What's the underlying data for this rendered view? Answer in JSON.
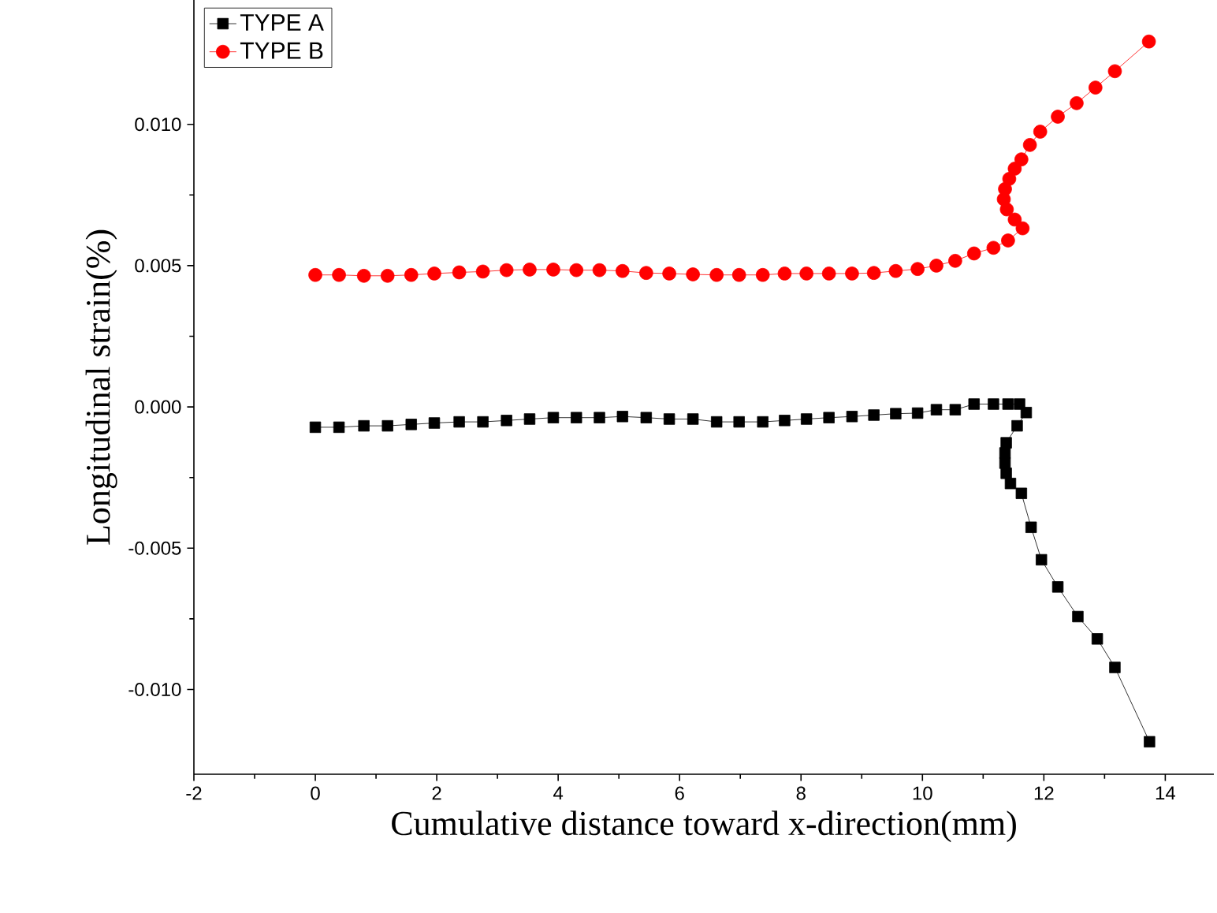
{
  "chart_data": {
    "type": "line",
    "xlabel": "Cumulative distance toward x-direction(mm)",
    "ylabel": "Longitudinal strain(%)",
    "xlim": [
      -2,
      14.8
    ],
    "ylim": [
      -0.013,
      0.0144
    ],
    "xticks": [
      -2,
      0,
      2,
      4,
      6,
      8,
      10,
      12,
      14
    ],
    "yticks": [
      {
        "value": -0.01,
        "label": "-0.010"
      },
      {
        "value": -0.005,
        "label": "-0.005"
      },
      {
        "value": 0,
        "label": "0.000"
      },
      {
        "value": 0.005,
        "label": "0.005"
      },
      {
        "value": 0.01,
        "label": "0.010"
      }
    ],
    "legend": "top left",
    "grid": false,
    "line_style": "solid",
    "series": [
      {
        "name": "TYPE A",
        "color": "#000000",
        "marker": "square",
        "x": [
          0,
          0.39,
          0.8,
          1.19,
          1.58,
          1.96,
          2.37,
          2.76,
          3.15,
          3.53,
          3.92,
          4.3,
          4.68,
          5.06,
          5.45,
          5.83,
          6.22,
          6.61,
          6.98,
          7.37,
          7.73,
          8.09,
          8.46,
          8.84,
          9.2,
          9.56,
          9.92,
          10.23,
          10.54,
          10.85,
          11.17,
          11.41,
          11.6,
          11.71,
          11.56,
          11.38,
          11.36,
          11.36,
          11.38,
          11.45,
          11.63,
          11.79,
          11.96,
          12.23,
          12.56,
          12.88,
          13.17,
          13.74
        ],
        "values": [
          -0.00072,
          -0.00072,
          -0.00067,
          -0.00067,
          -0.00062,
          -0.00057,
          -0.00053,
          -0.00053,
          -0.00048,
          -0.00043,
          -0.00038,
          -0.00038,
          -0.00038,
          -0.00034,
          -0.00038,
          -0.00043,
          -0.00043,
          -0.00053,
          -0.00053,
          -0.00053,
          -0.00048,
          -0.00043,
          -0.00038,
          -0.00034,
          -0.00029,
          -0.00024,
          -0.00022,
          -0.0001,
          -0.0001,
          0.0001,
          0.0001,
          0.0001,
          0.0001,
          -0.0002,
          -0.00067,
          -0.00127,
          -0.00163,
          -0.00199,
          -0.00235,
          -0.00271,
          -0.00306,
          -0.00426,
          -0.00541,
          -0.00637,
          -0.00742,
          -0.00821,
          -0.00922,
          -0.01185
        ]
      },
      {
        "name": "TYPE B",
        "color": "#ff0000",
        "marker": "circle",
        "x": [
          0,
          0.39,
          0.8,
          1.19,
          1.58,
          1.96,
          2.37,
          2.76,
          3.15,
          3.53,
          3.92,
          4.3,
          4.68,
          5.06,
          5.45,
          5.83,
          6.22,
          6.61,
          6.98,
          7.37,
          7.73,
          8.09,
          8.46,
          8.84,
          9.2,
          9.56,
          9.92,
          10.23,
          10.54,
          10.85,
          11.17,
          11.41,
          11.65,
          11.52,
          11.39,
          11.34,
          11.36,
          11.43,
          11.52,
          11.63,
          11.77,
          11.94,
          12.23,
          12.54,
          12.85,
          13.17,
          13.73
        ],
        "values": [
          0.00467,
          0.00467,
          0.00464,
          0.00464,
          0.00467,
          0.00472,
          0.00476,
          0.00479,
          0.00484,
          0.00486,
          0.00486,
          0.00484,
          0.00484,
          0.00481,
          0.00474,
          0.00472,
          0.00469,
          0.00467,
          0.00467,
          0.00467,
          0.00472,
          0.00472,
          0.00472,
          0.00472,
          0.00474,
          0.00481,
          0.00488,
          0.005,
          0.00517,
          0.00543,
          0.00563,
          0.00589,
          0.00632,
          0.00663,
          0.00699,
          0.00735,
          0.00771,
          0.00807,
          0.00843,
          0.00876,
          0.00927,
          0.00974,
          0.01027,
          0.01075,
          0.0113,
          0.01188,
          0.01293
        ]
      }
    ]
  }
}
